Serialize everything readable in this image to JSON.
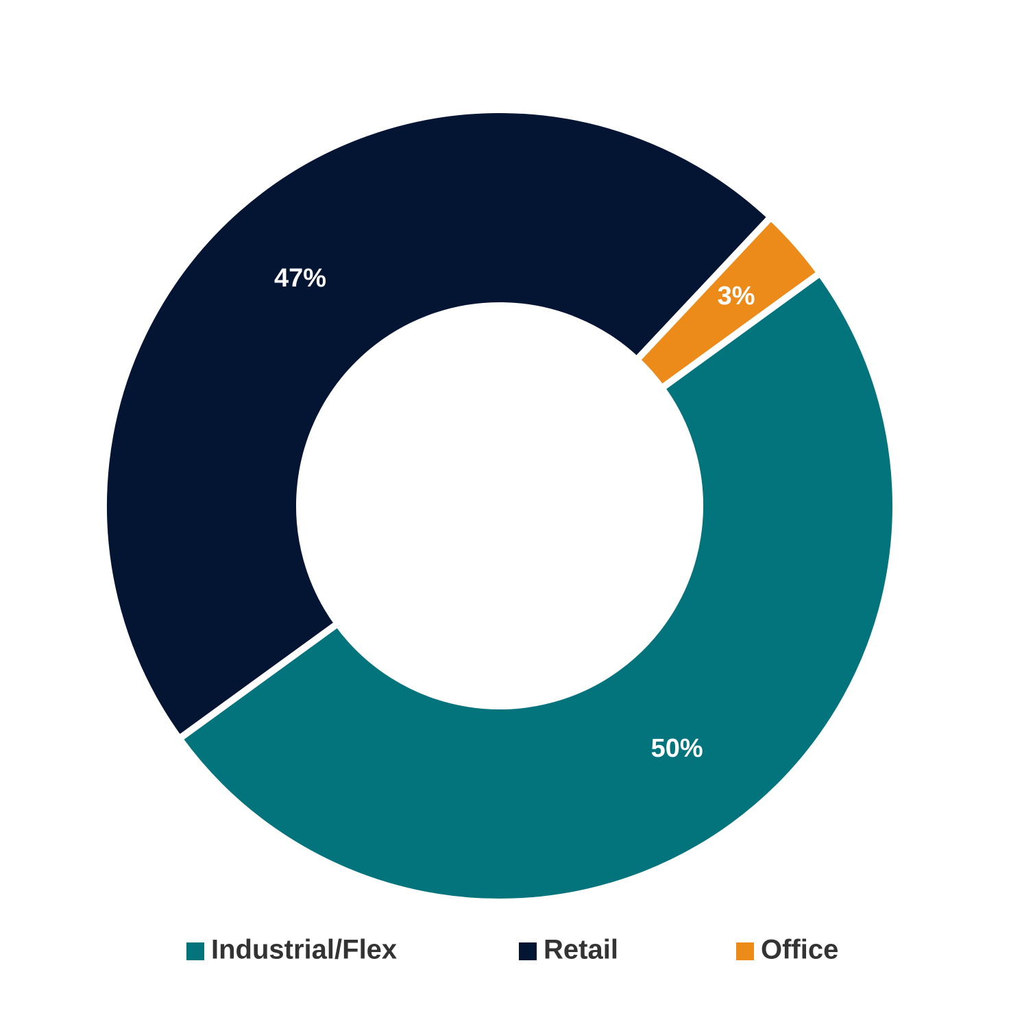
{
  "chart_data": {
    "type": "donut",
    "categories": [
      "Industrial/Flex",
      "Retail",
      "Office"
    ],
    "values": [
      50,
      47,
      3
    ],
    "value_labels": [
      "50%",
      "47%",
      "3%"
    ],
    "colors": [
      "#03747c",
      "#041534",
      "#ec8a1a"
    ],
    "legend": "bottom"
  }
}
